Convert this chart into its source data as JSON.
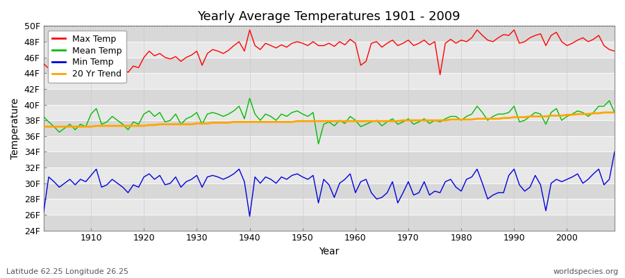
{
  "title": "Yearly Average Temperatures 1901 - 2009",
  "xlabel": "Year",
  "ylabel": "Temperature",
  "footnote_left": "Latitude 62.25 Longitude 26.25",
  "footnote_right": "worldspecies.org",
  "years": [
    1901,
    1902,
    1903,
    1904,
    1905,
    1906,
    1907,
    1908,
    1909,
    1910,
    1911,
    1912,
    1913,
    1914,
    1915,
    1916,
    1917,
    1918,
    1919,
    1920,
    1921,
    1922,
    1923,
    1924,
    1925,
    1926,
    1927,
    1928,
    1929,
    1930,
    1931,
    1932,
    1933,
    1934,
    1935,
    1936,
    1937,
    1938,
    1939,
    1940,
    1941,
    1942,
    1943,
    1944,
    1945,
    1946,
    1947,
    1948,
    1949,
    1950,
    1951,
    1952,
    1953,
    1954,
    1955,
    1956,
    1957,
    1958,
    1959,
    1960,
    1961,
    1962,
    1963,
    1964,
    1965,
    1966,
    1967,
    1968,
    1969,
    1970,
    1971,
    1972,
    1973,
    1974,
    1975,
    1976,
    1977,
    1978,
    1979,
    1980,
    1981,
    1982,
    1983,
    1984,
    1985,
    1986,
    1987,
    1988,
    1989,
    1990,
    1991,
    1992,
    1993,
    1994,
    1995,
    1996,
    1997,
    1998,
    1999,
    2000,
    2001,
    2002,
    2003,
    2004,
    2005,
    2006,
    2007,
    2008,
    2009
  ],
  "max_temp": [
    45.2,
    44.6,
    44.3,
    43.8,
    44.5,
    45.0,
    44.2,
    44.8,
    44.4,
    45.2,
    47.2,
    44.0,
    44.8,
    45.5,
    45.0,
    44.6,
    44.1,
    44.9,
    44.7,
    46.0,
    46.8,
    46.2,
    46.5,
    46.0,
    45.8,
    46.1,
    45.5,
    46.0,
    46.3,
    46.8,
    45.0,
    46.5,
    47.0,
    46.8,
    46.5,
    46.9,
    47.5,
    48.0,
    46.8,
    49.5,
    47.5,
    47.0,
    47.8,
    47.5,
    47.2,
    47.6,
    47.3,
    47.8,
    48.0,
    47.8,
    47.5,
    48.0,
    47.5,
    47.5,
    47.8,
    47.4,
    48.0,
    47.6,
    48.3,
    47.8,
    45.0,
    45.5,
    47.8,
    48.0,
    47.3,
    47.8,
    48.2,
    47.5,
    47.8,
    48.2,
    47.5,
    47.8,
    48.2,
    47.6,
    48.0,
    43.8,
    47.8,
    48.3,
    47.8,
    48.2,
    48.0,
    48.5,
    49.5,
    48.8,
    48.2,
    48.0,
    48.5,
    48.9,
    48.8,
    49.5,
    47.8,
    48.0,
    48.5,
    48.8,
    49.0,
    47.5,
    48.8,
    49.2,
    48.0,
    47.5,
    47.8,
    48.2,
    48.5,
    48.0,
    48.3,
    48.8,
    47.5,
    47.0,
    46.8
  ],
  "mean_temp": [
    38.5,
    37.8,
    37.2,
    36.5,
    37.0,
    37.5,
    36.8,
    37.5,
    37.2,
    38.8,
    39.5,
    37.5,
    37.8,
    38.5,
    38.0,
    37.5,
    36.8,
    37.8,
    37.5,
    38.8,
    39.2,
    38.5,
    39.0,
    37.8,
    38.0,
    38.8,
    37.5,
    38.2,
    38.5,
    39.0,
    37.5,
    38.8,
    39.0,
    38.8,
    38.5,
    38.8,
    39.2,
    39.8,
    38.2,
    40.8,
    38.8,
    38.0,
    38.8,
    38.5,
    38.0,
    38.8,
    38.5,
    39.0,
    39.2,
    38.8,
    38.5,
    39.0,
    35.0,
    37.5,
    37.8,
    37.3,
    38.0,
    37.6,
    38.5,
    38.0,
    37.2,
    37.5,
    37.8,
    38.0,
    37.3,
    37.8,
    38.2,
    37.5,
    37.8,
    38.2,
    37.5,
    37.8,
    38.2,
    37.6,
    38.0,
    37.8,
    38.2,
    38.5,
    38.5,
    38.0,
    38.5,
    38.8,
    39.8,
    39.0,
    38.0,
    38.5,
    38.8,
    38.8,
    39.0,
    39.8,
    37.8,
    38.0,
    38.5,
    39.0,
    38.8,
    37.5,
    39.0,
    39.5,
    38.0,
    38.5,
    38.8,
    39.2,
    39.0,
    38.5,
    39.0,
    39.8,
    39.8,
    40.5,
    39.0
  ],
  "min_temp": [
    26.2,
    30.8,
    30.2,
    29.5,
    30.0,
    30.5,
    29.8,
    30.5,
    30.2,
    31.0,
    31.8,
    29.5,
    29.8,
    30.5,
    30.0,
    29.5,
    28.8,
    29.8,
    29.5,
    30.8,
    31.2,
    30.5,
    31.0,
    29.8,
    30.0,
    30.8,
    29.5,
    30.2,
    30.5,
    31.0,
    29.5,
    30.8,
    31.0,
    30.8,
    30.5,
    30.8,
    31.2,
    31.8,
    30.2,
    25.8,
    30.8,
    30.0,
    30.8,
    30.5,
    30.0,
    30.8,
    30.5,
    31.0,
    31.2,
    30.8,
    30.5,
    31.0,
    27.5,
    30.5,
    29.8,
    28.2,
    30.0,
    30.5,
    31.2,
    28.8,
    30.2,
    30.5,
    28.8,
    28.0,
    28.2,
    28.8,
    30.2,
    27.5,
    28.8,
    30.2,
    28.5,
    28.8,
    30.2,
    28.5,
    29.0,
    28.8,
    30.2,
    30.5,
    29.5,
    29.0,
    30.5,
    30.8,
    31.8,
    30.0,
    28.0,
    28.5,
    28.8,
    28.8,
    31.0,
    31.8,
    29.8,
    29.0,
    29.5,
    31.0,
    29.8,
    26.5,
    30.0,
    30.5,
    30.2,
    30.5,
    30.8,
    31.2,
    30.0,
    30.5,
    31.2,
    31.8,
    29.8,
    30.5,
    34.0
  ],
  "trend_temp": [
    37.2,
    37.2,
    37.2,
    37.2,
    37.2,
    37.2,
    37.2,
    37.2,
    37.2,
    37.2,
    37.3,
    37.3,
    37.3,
    37.3,
    37.3,
    37.3,
    37.3,
    37.3,
    37.3,
    37.3,
    37.4,
    37.4,
    37.5,
    37.5,
    37.5,
    37.5,
    37.5,
    37.5,
    37.5,
    37.6,
    37.6,
    37.6,
    37.7,
    37.7,
    37.7,
    37.7,
    37.8,
    37.8,
    37.8,
    37.8,
    37.8,
    37.8,
    37.8,
    37.8,
    37.8,
    37.8,
    37.8,
    37.8,
    37.9,
    37.9,
    37.9,
    37.9,
    37.9,
    37.9,
    37.9,
    37.9,
    37.9,
    37.9,
    37.9,
    37.9,
    37.9,
    37.9,
    37.9,
    37.9,
    37.9,
    37.9,
    37.9,
    37.9,
    38.0,
    38.0,
    38.0,
    38.0,
    38.0,
    38.0,
    38.0,
    38.0,
    38.0,
    38.1,
    38.1,
    38.1,
    38.1,
    38.1,
    38.2,
    38.2,
    38.2,
    38.2,
    38.2,
    38.3,
    38.3,
    38.4,
    38.4,
    38.4,
    38.5,
    38.5,
    38.5,
    38.5,
    38.6,
    38.6,
    38.6,
    38.7,
    38.7,
    38.8,
    38.8,
    38.8,
    38.9,
    38.9,
    39.0,
    39.0,
    39.0
  ],
  "ylim": [
    24,
    50
  ],
  "yticks": [
    24,
    26,
    28,
    30,
    32,
    34,
    36,
    38,
    40,
    42,
    44,
    46,
    48,
    50
  ],
  "ytick_labels": [
    "24F",
    "26F",
    "28F",
    "30F",
    "32F",
    "34F",
    "36F",
    "38F",
    "40F",
    "42F",
    "44F",
    "46F",
    "48F",
    "50F"
  ],
  "xticks": [
    1910,
    1920,
    1930,
    1940,
    1950,
    1960,
    1970,
    1980,
    1990,
    2000
  ],
  "colors": {
    "max": "#ff0000",
    "mean": "#00bb00",
    "min": "#0000dd",
    "trend": "#ffa500",
    "background_plot": "#e4e4e4",
    "background_fig": "#ffffff",
    "grid_h": "#ffffff",
    "grid_v": "#cccccc",
    "dotted_line": "#555555"
  },
  "legend_labels": [
    "Max Temp",
    "Mean Temp",
    "Min Temp",
    "20 Yr Trend"
  ],
  "title_fontsize": 13,
  "axis_fontsize": 10,
  "tick_fontsize": 9,
  "footnote_fontsize": 8,
  "linewidth": 1.0,
  "trend_linewidth": 2.0
}
